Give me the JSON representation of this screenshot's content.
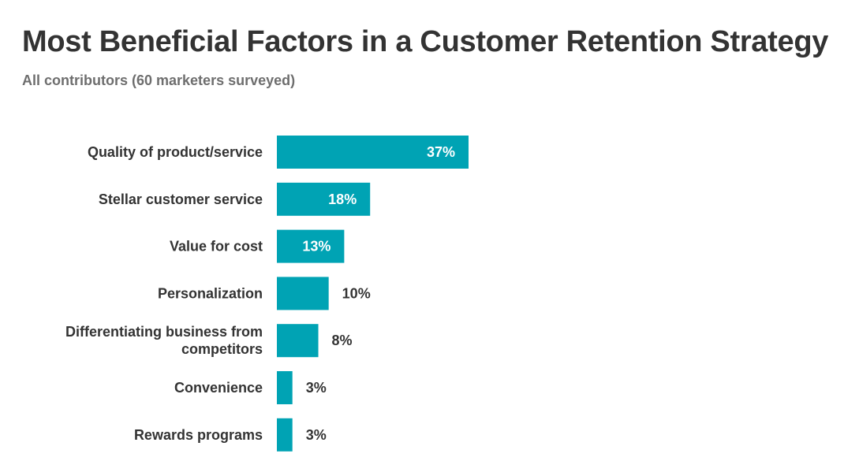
{
  "title": "Most Beneficial Factors in a Customer Retention Strategy",
  "subtitle": "All contributors (60 marketers surveyed)",
  "colors": {
    "bar": "#00a3b4",
    "label_inside": "#ffffff",
    "label_outside": "#333333",
    "category_text": "#333333"
  },
  "chart_data": {
    "type": "bar",
    "orientation": "horizontal",
    "categories": [
      [
        "Quality of product/service"
      ],
      [
        "Stellar customer service"
      ],
      [
        "Value for cost"
      ],
      [
        "Personalization"
      ],
      [
        "Differentiating business from",
        "competitors"
      ],
      [
        "Convenience"
      ],
      [
        "Rewards programs"
      ]
    ],
    "values": [
      37,
      18,
      13,
      10,
      8,
      3,
      3
    ],
    "value_labels": [
      "37%",
      "18%",
      "13%",
      "10%",
      "8%",
      "3%",
      "3%"
    ],
    "unit": "%",
    "xlim": [
      0,
      37
    ],
    "grid": false,
    "legend": "none"
  }
}
